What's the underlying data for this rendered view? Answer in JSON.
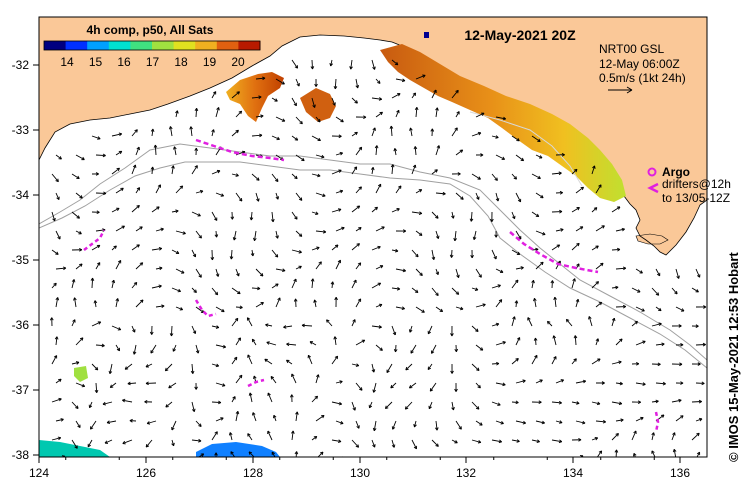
{
  "title": "12-May-2021 20Z",
  "legend": {
    "label": "4h comp, p50, All Sats",
    "ticks": [
      "14",
      "15",
      "16",
      "17",
      "18",
      "19",
      "20"
    ],
    "colors": [
      "#000080",
      "#0030ff",
      "#00a0ff",
      "#00e0d0",
      "#40e080",
      "#a0e040",
      "#e0e020",
      "#f0b020",
      "#e06010",
      "#b81a00"
    ]
  },
  "current_info": {
    "line1": "NRT00 GSL",
    "line2": "12-May 06:00Z",
    "line3": "0.5m/s (1kt 24h)"
  },
  "argo": {
    "label": "Argo"
  },
  "drifters": {
    "line1": "drifters@12h",
    "line2": "to 13/05-12Z"
  },
  "credit": "© IMOS 15-May-2021 12:53 Hobart",
  "axes": {
    "x_ticks": [
      "124",
      "126",
      "128",
      "130",
      "132",
      "134",
      "136"
    ],
    "y_ticks": [
      "-32",
      "-33",
      "-34",
      "-35",
      "-36",
      "-37",
      "-38"
    ]
  },
  "colors": {
    "land": "#fac898",
    "sea": "#ffffff",
    "isobath": "#a0a0a0",
    "drifter": "#e020e0",
    "arrow": "#000000"
  }
}
